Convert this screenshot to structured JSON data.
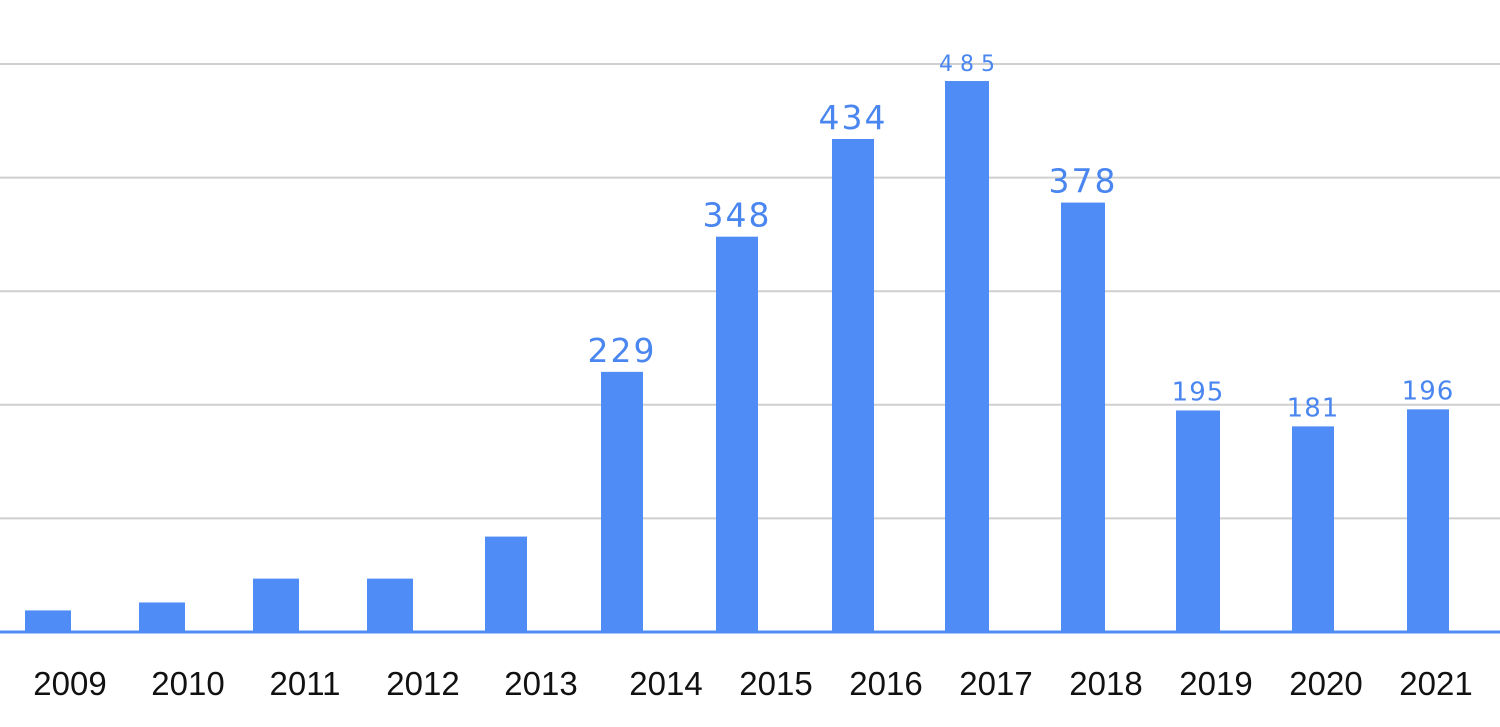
{
  "chart_data": {
    "type": "bar",
    "title": "",
    "xlabel": "",
    "ylabel": "",
    "categories": [
      "2009",
      "2010",
      "2011",
      "2012",
      "2013",
      "2014",
      "2015",
      "2016",
      "2017",
      "2018",
      "2019",
      "2020",
      "2021"
    ],
    "values": [
      19,
      26,
      47,
      47,
      84,
      229,
      348,
      434,
      485,
      378,
      195,
      181,
      196
    ],
    "value_labels": [
      "",
      "",
      "",
      "",
      "",
      "229",
      "348",
      "434",
      "4 8 5",
      "378",
      "195",
      "181",
      "196"
    ],
    "ylim": [
      0,
      500
    ],
    "grid": true,
    "y_tick_labels_visible": false,
    "legend": "none",
    "colors": {
      "bar": "#4f8cf5",
      "label": "#4a86f0",
      "axis": "#4f8cf5",
      "grid": "#cfcfcf"
    }
  }
}
